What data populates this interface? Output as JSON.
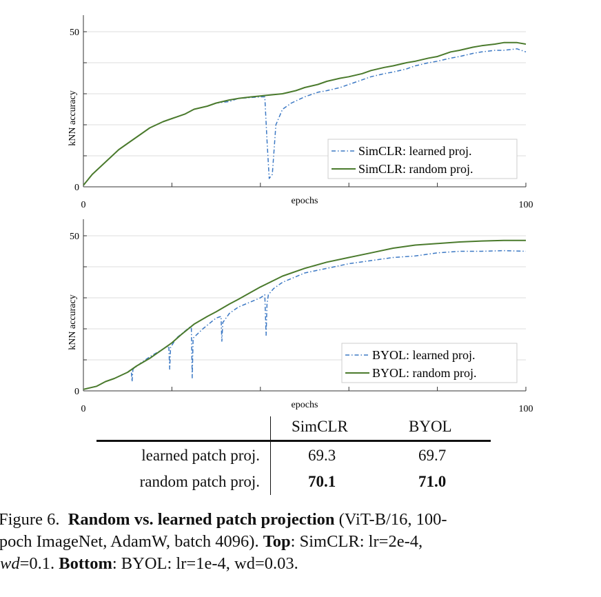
{
  "chart_data": [
    {
      "type": "line",
      "xlabel": "epochs",
      "ylabel": "kNN accuracy",
      "xlim": [
        0,
        100
      ],
      "ylim": [
        0,
        55
      ],
      "xticks": [
        0,
        20,
        40,
        60,
        80,
        100
      ],
      "xtick_labels": [
        "0",
        "",
        "",
        "",
        "",
        "100"
      ],
      "yticks": [
        0,
        10,
        20,
        30,
        40,
        50
      ],
      "ytick_labels": [
        "0",
        "",
        "",
        "",
        "",
        "50"
      ],
      "grid": true,
      "legend": "bottom-right",
      "series": [
        {
          "name": "SimCLR: learned proj.",
          "style": "dash-dot",
          "color": "#3b78c4",
          "x": [
            0,
            2,
            5,
            8,
            10,
            13,
            15,
            18,
            20,
            23,
            25,
            28,
            30,
            33,
            35,
            38,
            40,
            41,
            41.5,
            42,
            42.7,
            43.5,
            45,
            47,
            50,
            53,
            55,
            58,
            60,
            63,
            65,
            68,
            70,
            73,
            75,
            78,
            80,
            83,
            85,
            88,
            90,
            93,
            95,
            98,
            100
          ],
          "y": [
            0.5,
            4,
            8,
            12,
            14,
            17,
            19,
            21,
            22,
            23.5,
            25,
            26,
            27,
            27.5,
            28.5,
            28.8,
            29,
            29,
            15,
            2.7,
            4,
            20,
            25,
            27,
            29,
            30.5,
            31,
            32,
            33,
            34.5,
            35.5,
            36.5,
            37,
            38,
            39,
            40,
            40.5,
            41.5,
            42,
            43,
            43.5,
            44,
            44,
            44.5,
            43.5
          ]
        },
        {
          "name": "SimCLR: random proj.",
          "style": "solid",
          "color": "#4a7a2c",
          "x": [
            0,
            2,
            5,
            8,
            10,
            13,
            15,
            18,
            20,
            23,
            25,
            28,
            30,
            33,
            35,
            38,
            40,
            43,
            45,
            48,
            50,
            53,
            55,
            58,
            60,
            63,
            65,
            68,
            70,
            73,
            75,
            78,
            80,
            83,
            85,
            88,
            90,
            93,
            95,
            98,
            100
          ],
          "y": [
            0.5,
            4,
            8,
            12,
            14,
            17,
            19,
            21,
            22,
            23.5,
            25,
            26,
            27,
            28,
            28.5,
            29,
            29.3,
            29.7,
            30,
            31,
            32,
            33,
            34,
            35,
            35.5,
            36.5,
            37.5,
            38.5,
            39,
            40,
            40.5,
            41.5,
            42,
            43.5,
            44,
            45,
            45.5,
            46,
            46.5,
            46.5,
            46
          ]
        }
      ]
    },
    {
      "type": "line",
      "xlabel": "epochs",
      "ylabel": "kNN accuracy",
      "xlim": [
        0,
        100
      ],
      "ylim": [
        0,
        55
      ],
      "xticks": [
        0,
        20,
        40,
        60,
        80,
        100
      ],
      "xtick_labels": [
        "0",
        "",
        "",
        "",
        "",
        "100"
      ],
      "yticks": [
        0,
        10,
        20,
        30,
        40,
        50
      ],
      "ytick_labels": [
        "0",
        "",
        "",
        "",
        "",
        "50"
      ],
      "grid": true,
      "legend": "bottom-right",
      "series": [
        {
          "name": "BYOL: learned proj.",
          "style": "dash-dot",
          "color": "#3b78c4",
          "x": [
            0,
            3,
            5,
            7,
            10,
            10.8,
            11,
            11.2,
            13,
            15,
            18,
            19.3,
            19.5,
            19.7,
            21,
            24,
            24.4,
            24.6,
            24.8,
            27,
            30,
            31.1,
            31.3,
            31.5,
            33,
            35,
            40,
            41,
            41.3,
            41.5,
            41.8,
            43,
            45,
            50,
            55,
            60,
            65,
            70,
            75,
            80,
            85,
            90,
            95,
            100
          ],
          "y": [
            0.5,
            1.5,
            3,
            4,
            6,
            7,
            3,
            7,
            9,
            11,
            13.5,
            14.5,
            7,
            14,
            17,
            20.5,
            20.5,
            4.2,
            17,
            20,
            23.5,
            24,
            16,
            22,
            25,
            27,
            30,
            31,
            17.9,
            28,
            31,
            33,
            35,
            38,
            39.5,
            41,
            42,
            43,
            43.5,
            44.5,
            45,
            45,
            45.2,
            45
          ]
        },
        {
          "name": "BYOL: random proj.",
          "style": "solid",
          "color": "#4a7a2c",
          "x": [
            0,
            3,
            5,
            7,
            10,
            12,
            15,
            18,
            20,
            22,
            25,
            28,
            30,
            33,
            35,
            40,
            45,
            50,
            55,
            60,
            65,
            70,
            75,
            80,
            85,
            90,
            95,
            100
          ],
          "y": [
            0.5,
            1.5,
            3,
            4,
            6,
            8,
            10.5,
            13.5,
            15.5,
            18,
            21.5,
            24,
            25.5,
            28,
            29.5,
            33.5,
            37,
            39.5,
            41.5,
            43,
            44.5,
            46,
            47,
            47.5,
            48,
            48.3,
            48.5,
            48.5
          ]
        }
      ]
    }
  ],
  "table": {
    "headers": [
      "",
      "SimCLR",
      "BYOL"
    ],
    "rows": [
      [
        "learned patch proj.",
        "69.3",
        "69.7"
      ],
      [
        "random patch proj.",
        "70.1",
        "71.0"
      ]
    ],
    "bold_row": 1
  },
  "caption": {
    "label": "Figure 6.",
    "title": "Random vs. learned patch projection",
    "text1": " (ViT-B/16, 100-",
    "line2": "epoch ImageNet, AdamW, batch 4096). ",
    "top": "Top",
    ": SimCLR: ": "",
    "line3a": "wd",
    "line3b": "=0.1. ",
    "bottom": "Bottom",
    "line3c": ": BYOL: ",
    "simclr_params": ": SimCLR: lr=2e-4,",
    "byol_params": ": BYOL: lr=1e-4, wd=0.03."
  }
}
